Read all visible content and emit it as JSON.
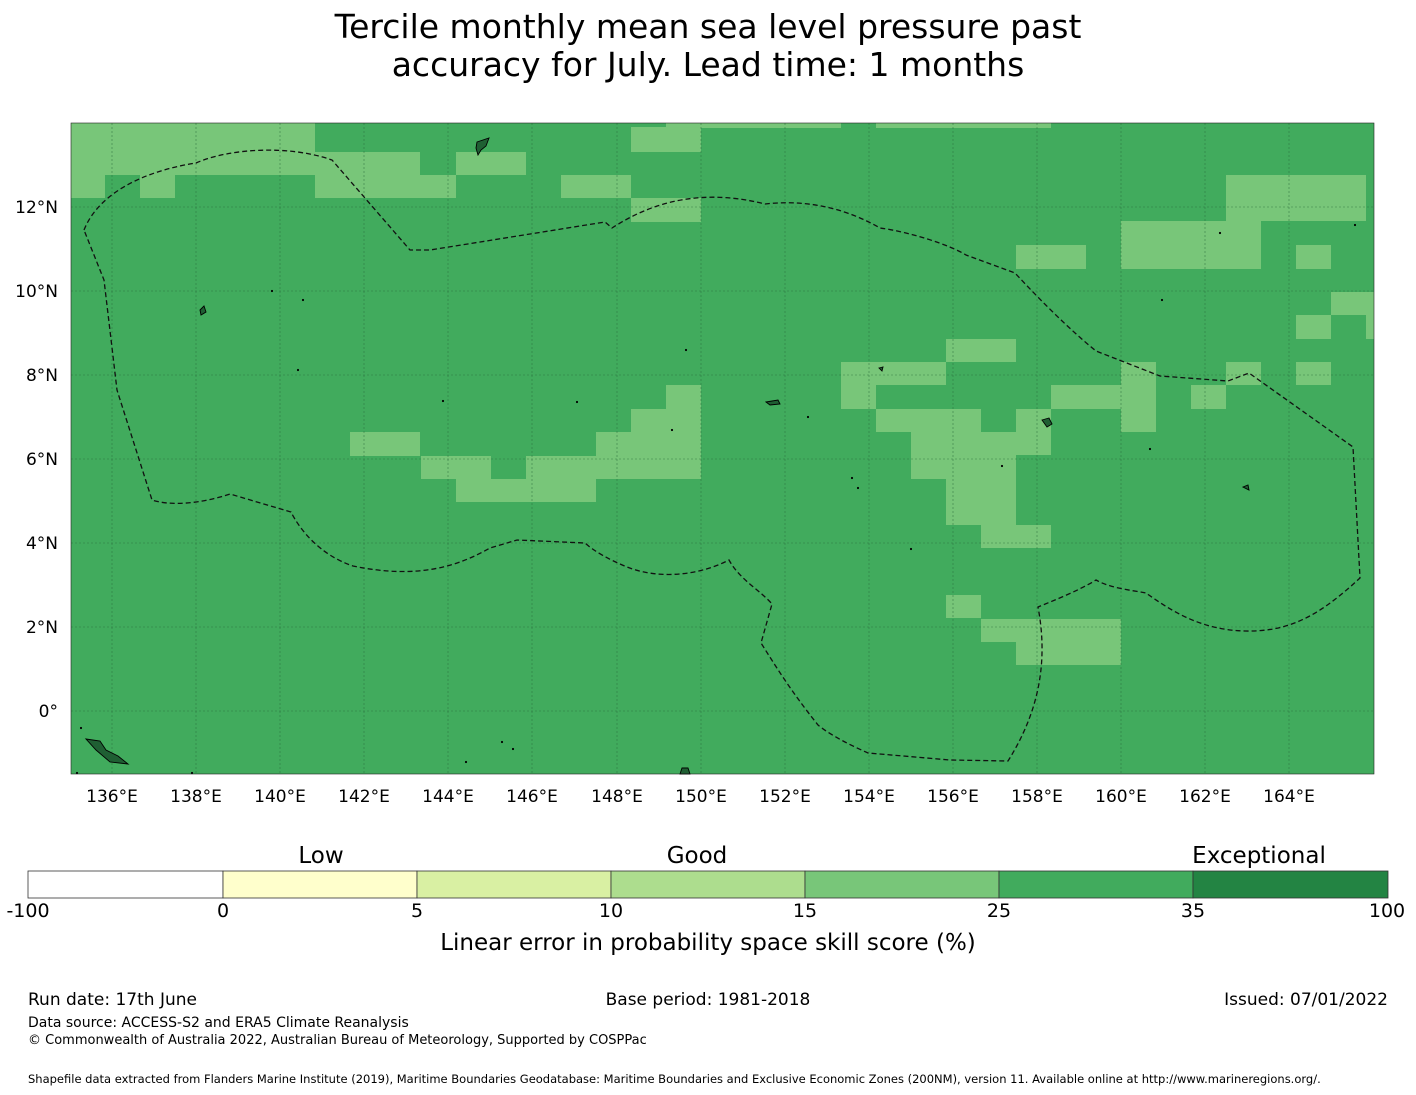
{
  "title_line1": "Tercile monthly mean sea level pressure past",
  "title_line2": "accuracy for July. Lead time: 1 months",
  "map": {
    "lon_labels": [
      "136°E",
      "138°E",
      "140°E",
      "142°E",
      "144°E",
      "146°E",
      "148°E",
      "150°E",
      "152°E",
      "154°E",
      "156°E",
      "158°E",
      "160°E",
      "162°E",
      "164°E"
    ],
    "lat_labels": [
      "12°N",
      "10°N",
      "8°N",
      "6°N",
      "4°N",
      "2°N",
      "0°"
    ],
    "base_color": "#41ab5d",
    "light_color": "#78c679"
  },
  "colorbar": {
    "category_labels": [
      "Low",
      "Good",
      "Exceptional"
    ],
    "ticks": [
      "-100",
      "0",
      "5",
      "10",
      "15",
      "25",
      "35",
      "100"
    ],
    "colors": [
      "#ffffff",
      "#ffffcc",
      "#d9f0a3",
      "#addd8e",
      "#78c679",
      "#41ab5d",
      "#238443"
    ],
    "title": "Linear error in probability space skill score (%)"
  },
  "footer": {
    "run_date": "Run date: 17th June",
    "base_period": "Base period: 1981-2018",
    "issued": "Issued: 07/01/2022",
    "data_source": "Data source: ACCESS-S2 and ERA5 Climate Reanalysis",
    "copyright": "© Commonwealth of Australia 2022, Australian Bureau of Meteorology, Supported by COSPPac",
    "shapefile": "Shapefile data extracted from Flanders Marine Institute (2019), Maritime Boundaries Geodatabase: Maritime Boundaries and Exclusive Economic Zones (200NM), version 11. Available online at http://www.marineregions.org/."
  }
}
